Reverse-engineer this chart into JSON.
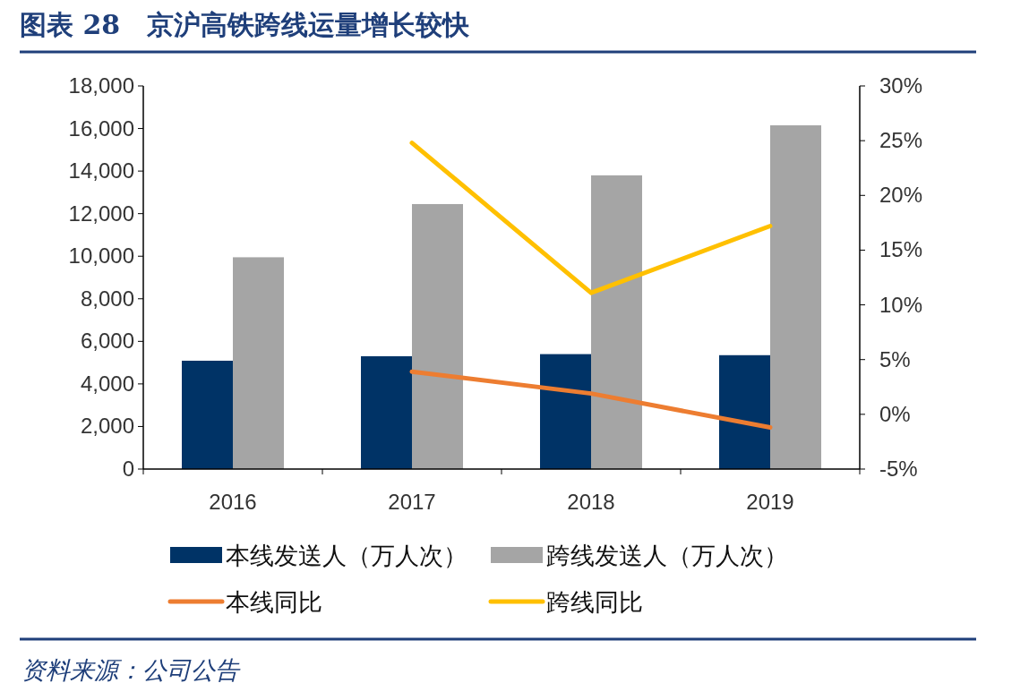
{
  "chart_data": {
    "type": "bar",
    "title": "图表 28　京沪高铁跨线运量增长较快",
    "categories": [
      "2016",
      "2017",
      "2018",
      "2019"
    ],
    "series": [
      {
        "name": "本线发送人（万人次）",
        "color": "#003366",
        "values": [
          5090,
          5300,
          5400,
          5350
        ]
      },
      {
        "name": "跨线发送人（万人次）",
        "color": "#a5a5a5",
        "values": [
          9950,
          12450,
          13800,
          16150
        ]
      },
      {
        "name": "本线同比",
        "type": "line",
        "axis": "y2",
        "color": "#ed7d31",
        "values": [
          null,
          3.9,
          1.9,
          -1.2
        ]
      },
      {
        "name": "跨线同比",
        "type": "line",
        "axis": "y2",
        "color": "#ffc000",
        "values": [
          null,
          24.8,
          11.1,
          17.2
        ]
      }
    ],
    "ylim": [
      0,
      18000
    ],
    "yticks": [
      {
        "value": 0,
        "label": "0"
      },
      {
        "value": 2000,
        "label": "2,000"
      },
      {
        "value": 4000,
        "label": "4,000"
      },
      {
        "value": 6000,
        "label": "6,000"
      },
      {
        "value": 8000,
        "label": "8,000"
      },
      {
        "value": 10000,
        "label": "10,000"
      },
      {
        "value": 12000,
        "label": "12,000"
      },
      {
        "value": 14000,
        "label": "14,000"
      },
      {
        "value": 16000,
        "label": "16,000"
      },
      {
        "value": 18000,
        "label": "18,000"
      }
    ],
    "y2lim": [
      -5,
      30
    ],
    "y2ticks": [
      {
        "value": -5,
        "label": "-5%"
      },
      {
        "value": 0,
        "label": "0%"
      },
      {
        "value": 5,
        "label": "5%"
      },
      {
        "value": 10,
        "label": "10%"
      },
      {
        "value": 15,
        "label": "15%"
      },
      {
        "value": 20,
        "label": "20%"
      },
      {
        "value": 25,
        "label": "25%"
      },
      {
        "value": 30,
        "label": "30%"
      }
    ],
    "legend": "bottom",
    "marker": "none",
    "annotations": [
      "资料来源：公司公告"
    ]
  }
}
